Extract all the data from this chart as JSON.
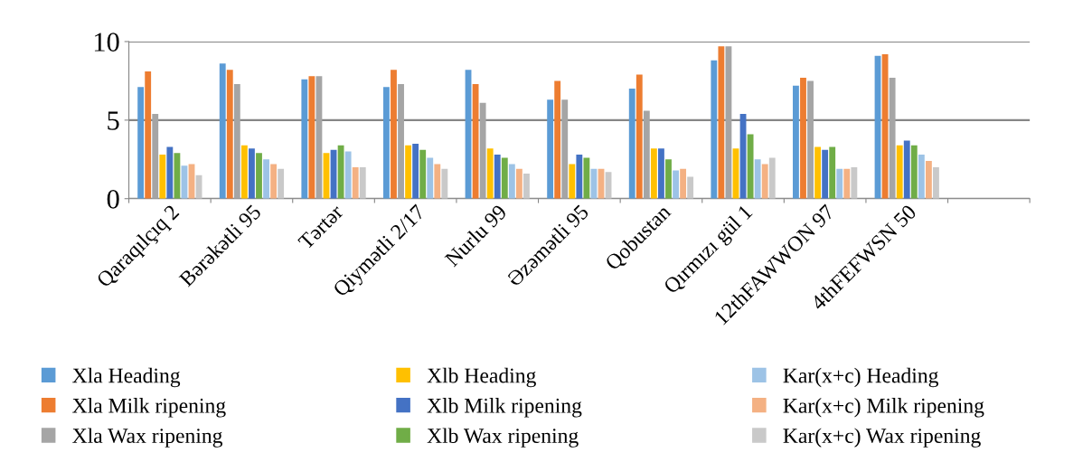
{
  "chart_data": {
    "type": "bar",
    "categories": [
      "Qaraqılçıq 2",
      "Bərəkətli 95",
      "Tərtər",
      "Qiymətli 2/17",
      "Nurlu 99",
      "Əzəmətli 95",
      "Qobustan",
      "Qırmızı gül 1",
      "12thFAWWON 97",
      "4thFEFWSN 50",
      null
    ],
    "series": [
      {
        "name": "Xla Heading",
        "color": "#5b9bd5",
        "values": [
          7.1,
          8.6,
          7.6,
          7.1,
          8.2,
          6.3,
          7.0,
          8.8,
          7.2,
          9.1,
          null
        ]
      },
      {
        "name": "Xla Milk ripening",
        "color": "#ed7d31",
        "values": [
          8.1,
          8.2,
          7.8,
          8.2,
          7.3,
          7.5,
          7.9,
          9.7,
          7.7,
          9.2,
          null
        ]
      },
      {
        "name": "Xla Wax ripening",
        "color": "#a5a5a5",
        "values": [
          5.4,
          7.3,
          7.8,
          7.3,
          6.1,
          6.3,
          5.6,
          9.7,
          7.5,
          7.7,
          null
        ]
      },
      {
        "name": "Xlb Heading",
        "color": "#ffc000",
        "values": [
          2.8,
          3.4,
          2.9,
          3.4,
          3.2,
          2.2,
          3.2,
          3.2,
          3.3,
          3.4,
          null
        ]
      },
      {
        "name": "Xlb Milk ripening",
        "color": "#4472c4",
        "values": [
          3.3,
          3.2,
          3.1,
          3.5,
          2.8,
          2.8,
          3.2,
          5.4,
          3.1,
          3.7,
          null
        ]
      },
      {
        "name": "Xlb Wax ripening",
        "color": "#70ad47",
        "values": [
          2.9,
          2.9,
          3.4,
          3.1,
          2.6,
          2.6,
          2.5,
          4.1,
          3.3,
          3.4,
          null
        ]
      },
      {
        "name": "Kar(x+c) Heading",
        "color": "#9dc3e6",
        "values": [
          2.1,
          2.5,
          3.0,
          2.6,
          2.2,
          1.9,
          1.8,
          2.5,
          1.9,
          2.8,
          null
        ]
      },
      {
        "name": "Kar(x+c) Milk ripening",
        "color": "#f4b183",
        "values": [
          2.2,
          2.2,
          2.0,
          2.2,
          1.9,
          1.9,
          1.9,
          2.2,
          1.9,
          2.4,
          null
        ]
      },
      {
        "name": "Kar(x+c) Wax ripening",
        "color": "#c9c9c9",
        "values": [
          1.5,
          1.9,
          2.0,
          1.9,
          1.6,
          1.7,
          1.4,
          2.6,
          2.0,
          2.0,
          null
        ]
      }
    ],
    "ylim": [
      0,
      10
    ],
    "yticks": [
      0,
      5,
      10
    ],
    "grid": "y",
    "legend": "bottom"
  }
}
